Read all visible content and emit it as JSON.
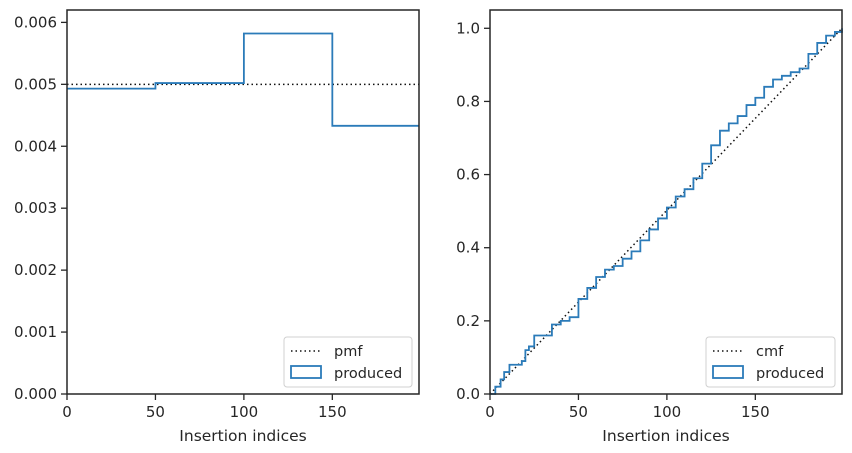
{
  "colors": {
    "produced": "#2b7bb9",
    "reference": "#111111",
    "axis": "#262626",
    "legend_border": "#d0d0d0"
  },
  "chart_data": [
    {
      "type": "line",
      "plot": "pmf",
      "xlabel": "Insertion indices",
      "ylabel": "",
      "xlim": [
        0,
        199
      ],
      "ylim": [
        0,
        0.0062
      ],
      "xticks": [
        0,
        50,
        100,
        150
      ],
      "yticks": [
        0.0,
        0.001,
        0.002,
        0.003,
        0.004,
        0.005,
        0.006
      ],
      "ytick_labels": [
        "0.000",
        "0.001",
        "0.002",
        "0.003",
        "0.004",
        "0.005",
        "0.006"
      ],
      "legend": {
        "placement": "bottom-right",
        "entries": [
          "pmf",
          "produced"
        ]
      },
      "series": [
        {
          "name": "pmf",
          "style": "dotted",
          "x": [
            0,
            199
          ],
          "y": [
            0.005,
            0.005
          ]
        },
        {
          "name": "produced",
          "style": "step",
          "bin_edges": [
            0,
            50,
            100,
            150,
            199
          ],
          "values": [
            0.00493,
            0.00502,
            0.00582,
            0.00433
          ]
        }
      ]
    },
    {
      "type": "line",
      "plot": "cmf",
      "xlabel": "Insertion indices",
      "ylabel": "",
      "xlim": [
        0,
        199
      ],
      "ylim": [
        0,
        1.05
      ],
      "xticks": [
        0,
        50,
        100,
        150
      ],
      "yticks": [
        0.0,
        0.2,
        0.4,
        0.6,
        0.8,
        1.0
      ],
      "ytick_labels": [
        "0.0",
        "0.2",
        "0.4",
        "0.6",
        "0.8",
        "1.0"
      ],
      "legend": {
        "placement": "bottom-right",
        "entries": [
          "cmf",
          "produced"
        ]
      },
      "series": [
        {
          "name": "cmf",
          "style": "dotted",
          "x": [
            0,
            199
          ],
          "y": [
            0,
            1.0
          ]
        },
        {
          "name": "produced",
          "style": "step",
          "x": [
            0,
            3,
            6,
            8,
            11,
            14,
            18,
            20,
            22,
            25,
            30,
            35,
            40,
            45,
            50,
            55,
            60,
            65,
            70,
            75,
            80,
            85,
            90,
            95,
            100,
            105,
            110,
            115,
            120,
            125,
            130,
            135,
            140,
            145,
            150,
            155,
            160,
            165,
            170,
            175,
            180,
            185,
            190,
            195,
            199
          ],
          "y": [
            0,
            0.02,
            0.04,
            0.06,
            0.08,
            0.08,
            0.09,
            0.12,
            0.13,
            0.16,
            0.16,
            0.19,
            0.2,
            0.21,
            0.26,
            0.29,
            0.32,
            0.34,
            0.35,
            0.37,
            0.39,
            0.42,
            0.45,
            0.48,
            0.51,
            0.54,
            0.56,
            0.59,
            0.63,
            0.68,
            0.72,
            0.74,
            0.76,
            0.79,
            0.81,
            0.84,
            0.86,
            0.87,
            0.88,
            0.89,
            0.93,
            0.96,
            0.98,
            0.99,
            1.0
          ]
        }
      ]
    }
  ]
}
